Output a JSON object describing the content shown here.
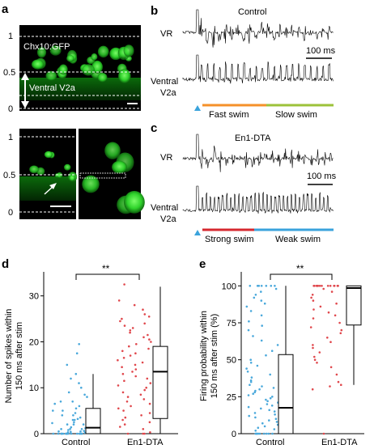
{
  "panels": {
    "a": {
      "letter": "a",
      "top": {
        "label": "Chx10:GFP",
        "region_label": "Ventral V2a",
        "ticks": [
          "1",
          "0.5",
          "0"
        ]
      },
      "bottom": {
        "ticks": [
          "1",
          "0.5",
          "0"
        ]
      }
    },
    "b": {
      "letter": "b",
      "title": "Control",
      "trace1": "VR",
      "trace2_line1": "Ventral",
      "trace2_line2": "V2a",
      "scalebar": "100 ms",
      "phase1": "Fast swim",
      "phase2": "Slow swim",
      "phase1_color": "#f5902a",
      "phase2_color": "#9cc23a"
    },
    "c": {
      "letter": "c",
      "title": "En1-DTA",
      "trace1": "VR",
      "trace2_line1": "Ventral",
      "trace2_line2": "V2a",
      "scalebar": "100 ms",
      "phase1": "Strong swim",
      "phase2": "Weak swim",
      "phase1_color": "#d6282f",
      "phase2_color": "#3aa3dc"
    },
    "d": {
      "letter": "d",
      "significance": "**"
    },
    "e": {
      "letter": "e",
      "significance": "**"
    }
  },
  "chart_data": [
    {
      "type": "scatter",
      "panel": "d",
      "ylabel": "Number of spikes within 150 ms after stim",
      "ylabel_line1": "Number of spikes within",
      "ylabel_line2": "150 ms after stim",
      "categories": [
        "Control",
        "En1-DTA"
      ],
      "yticks": [
        "0",
        "10",
        "20",
        "30"
      ],
      "ylim": [
        0,
        34
      ],
      "colors": {
        "Control": "#49a8db",
        "En1-DTA": "#e0474c"
      },
      "series": [
        {
          "name": "Control",
          "values": [
            0,
            0,
            0,
            0,
            0,
            0,
            0,
            0,
            0,
            0,
            0,
            0,
            0,
            0,
            0,
            0,
            0,
            0,
            0.2,
            0.3,
            0.4,
            0.5,
            0.5,
            0.6,
            0.8,
            1,
            1,
            1,
            1.2,
            1.4,
            1.5,
            2,
            2,
            2,
            2.3,
            2.5,
            3,
            3,
            3.2,
            3.5,
            4,
            4,
            4.5,
            5,
            5,
            5.5,
            6,
            6.5,
            7,
            7,
            8,
            8.5,
            9,
            10,
            11,
            12,
            13,
            15,
            17.5,
            19.5
          ],
          "box": {
            "q1": 0,
            "median": 1.3,
            "q3": 5.5,
            "min": 0,
            "max": 13
          }
        },
        {
          "name": "En1-DTA",
          "values": [
            0,
            0,
            0,
            0.3,
            1,
            1.5,
            2,
            2.5,
            3,
            3.5,
            4,
            4.5,
            5,
            5.5,
            6,
            6.5,
            7,
            7.5,
            8,
            8.5,
            9,
            9.5,
            10,
            10.5,
            11,
            11.5,
            12,
            12.5,
            13,
            13.5,
            14,
            14.5,
            15,
            15.5,
            16,
            16.5,
            17,
            17.5,
            18,
            18.5,
            19,
            19.5,
            20,
            20.5,
            21,
            21.5,
            22,
            22.5,
            23,
            23.5,
            24,
            24.5,
            25,
            25.5,
            26,
            27,
            28,
            29,
            32.5
          ],
          "box": {
            "q1": 3.3,
            "median": 13.5,
            "q3": 19,
            "min": 0,
            "max": 32
          }
        }
      ]
    },
    {
      "type": "scatter",
      "panel": "e",
      "ylabel": "Firing probability within 150 ms after stim (%)",
      "ylabel_line1": "Firing probability within",
      "ylabel_line2": "150 ms after stim (%)",
      "categories": [
        "Control",
        "En1-DTA"
      ],
      "yticks": [
        "0",
        "25",
        "50",
        "75",
        "100"
      ],
      "ylim": [
        0,
        104
      ],
      "colors": {
        "Control": "#49a8db",
        "En1-DTA": "#e0474c"
      },
      "series": [
        {
          "name": "Control",
          "values": [
            0,
            0,
            0,
            0,
            0,
            0,
            0,
            0,
            0,
            0,
            2,
            3,
            4,
            5,
            6,
            7,
            8,
            9,
            10,
            11,
            12,
            13,
            14,
            15,
            16,
            17,
            18,
            19,
            20,
            21,
            22,
            23,
            24,
            25,
            26,
            27,
            28,
            29,
            30,
            31,
            32,
            33,
            35,
            36,
            38,
            40,
            42,
            44,
            46,
            48,
            50,
            53,
            56,
            60,
            63,
            66,
            70,
            73,
            76,
            80,
            83,
            86,
            88,
            90,
            92,
            94,
            96,
            98,
            100,
            100,
            100,
            100,
            100,
            100,
            100
          ],
          "box": {
            "q1": 0,
            "median": 17.5,
            "q3": 53.5,
            "min": 0,
            "max": 100
          }
        },
        {
          "name": "En1-DTA",
          "values": [
            0,
            30,
            32,
            33,
            35,
            40,
            45,
            48,
            50,
            52,
            55,
            58,
            60,
            62,
            65,
            68,
            70,
            72,
            75,
            78,
            80,
            82,
            84,
            86,
            88,
            90,
            92,
            94,
            96,
            98,
            100,
            100,
            100,
            100,
            100,
            100,
            100,
            100,
            100,
            100,
            100,
            100,
            100,
            100,
            100,
            100
          ],
          "box": {
            "q1": 73.5,
            "median": 98.5,
            "q3": 100,
            "min": 33,
            "max": 100
          }
        }
      ]
    }
  ]
}
